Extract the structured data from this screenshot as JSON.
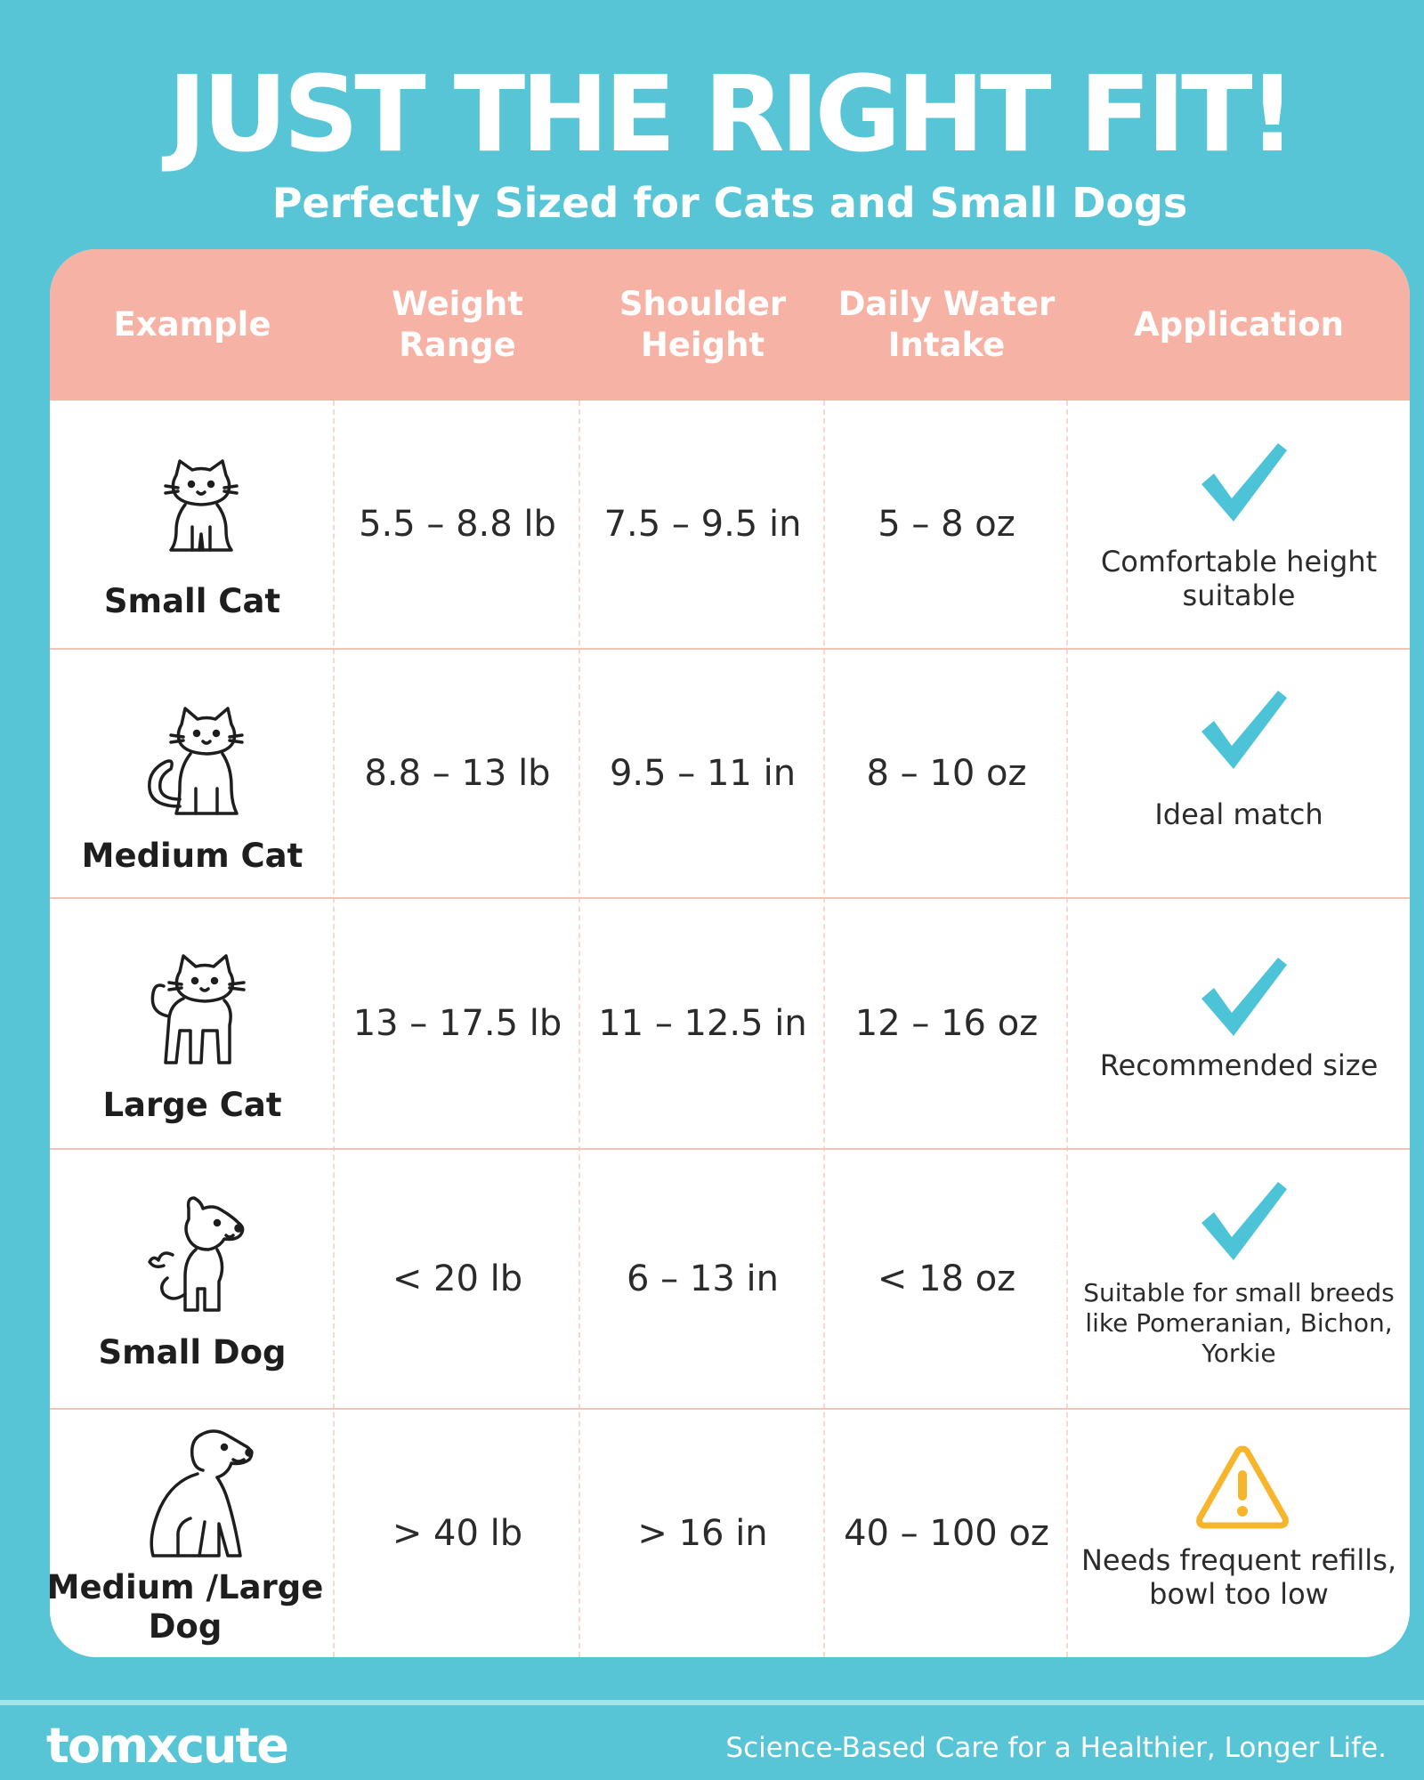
{
  "header": {
    "title": "JUST THE RIGHT FIT!",
    "subtitle": "Perfectly Sized for Cats and Small Dogs"
  },
  "table": {
    "columns": [
      "Example",
      "Weight Range",
      "Shoulder Height",
      "Daily Water Intake",
      "Application"
    ],
    "rows": [
      {
        "name": "Small Cat",
        "icon": "small-cat-icon",
        "weight": "5.5 – 8.8 lb",
        "height": "7.5 – 9.5 in",
        "water": "5 – 8 oz",
        "status_icon": "checkmark-icon",
        "application": "Comfortable height suitable"
      },
      {
        "name": "Medium Cat",
        "icon": "medium-cat-icon",
        "weight": "8.8 – 13 lb",
        "height": "9.5 – 11 in",
        "water": "8 – 10 oz",
        "status_icon": "checkmark-icon",
        "application": "Ideal match"
      },
      {
        "name": "Large Cat",
        "icon": "large-cat-icon",
        "weight": "13 – 17.5 lb",
        "height": "11 – 12.5 in",
        "water": "12 – 16 oz",
        "status_icon": "checkmark-icon",
        "application": "Recommended size"
      },
      {
        "name": "Small Dog",
        "icon": "small-dog-icon",
        "weight": "< 20 lb",
        "height": "6 – 13 in",
        "water": "< 18 oz",
        "status_icon": "checkmark-icon",
        "application": "Suitable for small breeds like Pomeranian, Bichon, Yorkie"
      },
      {
        "name": "Medium /Large Dog",
        "icon": "large-dog-icon",
        "weight": "> 40 lb",
        "height": "> 16 in",
        "water": "40 – 100 oz",
        "status_icon": "warning-icon",
        "application": "Needs frequent refills, bowl too low"
      }
    ]
  },
  "footer": {
    "brand": "tomxcute",
    "tagline": "Science-Based Care for a Healthier, Longer Life."
  },
  "colors": {
    "background": "#58c5d6",
    "header_row": "#f6b3a5",
    "check": "#4cc3d6",
    "warning": "#f7b52c"
  }
}
